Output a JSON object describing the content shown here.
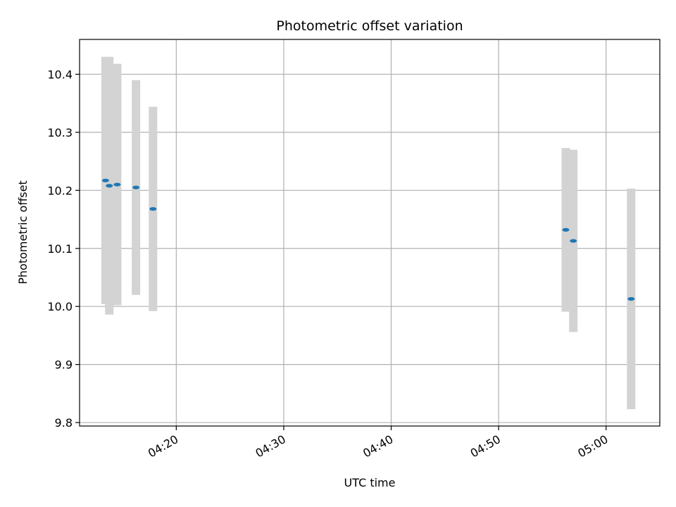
{
  "chart_data": {
    "type": "scatter",
    "title": "Photometric offset variation",
    "xlabel": "UTC time",
    "ylabel": "Photometric offset",
    "x_unit": "time of day (HH:MM:SS)",
    "xlim": [
      "04:11:00",
      "05:05:00"
    ],
    "ylim": [
      9.794,
      10.46
    ],
    "x_ticks": [
      "04:20",
      "04:30",
      "04:40",
      "04:50",
      "05:00"
    ],
    "y_ticks": [
      "9.8",
      "9.9",
      "10.0",
      "10.1",
      "10.2",
      "10.3",
      "10.4"
    ],
    "y_tick_values": [
      9.8,
      9.9,
      10.0,
      10.1,
      10.2,
      10.3,
      10.4
    ],
    "grid": true,
    "colors": {
      "marker": "#1f77b4",
      "error_bar": "#d3d3d3",
      "grid": "#b0b0b0",
      "axis": "#000000"
    },
    "points": [
      {
        "x": "04:13:25",
        "y": 10.217,
        "yerr": 0.213
      },
      {
        "x": "04:13:46",
        "y": 10.208,
        "yerr": 0.222
      },
      {
        "x": "04:14:30",
        "y": 10.21,
        "yerr": 0.208
      },
      {
        "x": "04:16:15",
        "y": 10.205,
        "yerr": 0.185
      },
      {
        "x": "04:17:50",
        "y": 10.168,
        "yerr": 0.176
      },
      {
        "x": "04:56:15",
        "y": 10.132,
        "yerr": 0.141
      },
      {
        "x": "04:56:57",
        "y": 10.113,
        "yerr": 0.157
      },
      {
        "x": "05:02:20",
        "y": 10.013,
        "yerr": 0.19
      }
    ]
  }
}
